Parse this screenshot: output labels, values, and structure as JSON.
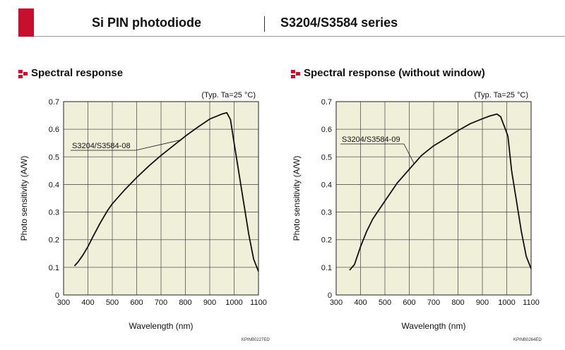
{
  "header": {
    "left_title": "Si PIN photodiode",
    "right_title": "S3204/S3584 series",
    "accent_color": "#c8102e"
  },
  "charts": [
    {
      "section_title": "Spectral response",
      "condition": "(Typ. Ta=25 °C)",
      "figure_code": "KPINB0227ED"
    },
    {
      "section_title": "Spectral response (without window)",
      "condition": "(Typ. Ta=25 °C)",
      "figure_code": "KPINB0264ED"
    }
  ],
  "chart_data": [
    {
      "type": "line",
      "xlabel": "Wavelength (nm)",
      "ylabel": "Photo sensitivity (A/W)",
      "xlim": [
        300,
        1100
      ],
      "ylim": [
        0,
        0.7
      ],
      "xticks": [
        300,
        400,
        500,
        600,
        700,
        800,
        900,
        1000,
        1100
      ],
      "yticks": [
        0,
        0.1,
        0.2,
        0.3,
        0.4,
        0.5,
        0.6,
        0.7
      ],
      "grid": true,
      "series": [
        {
          "name": "S3204/S3584-08",
          "x": [
            345,
            360,
            380,
            400,
            420,
            450,
            480,
            500,
            550,
            600,
            650,
            700,
            750,
            800,
            850,
            900,
            930,
            950,
            970,
            985,
            1000,
            1020,
            1040,
            1060,
            1080,
            1100
          ],
          "y": [
            0.105,
            0.12,
            0.145,
            0.175,
            0.21,
            0.26,
            0.305,
            0.33,
            0.38,
            0.425,
            0.467,
            0.505,
            0.54,
            0.575,
            0.607,
            0.637,
            0.648,
            0.655,
            0.66,
            0.635,
            0.55,
            0.44,
            0.33,
            0.22,
            0.13,
            0.085
          ]
        }
      ]
    },
    {
      "type": "line",
      "xlabel": "Wavelength (nm)",
      "ylabel": "Photo sensitivity (A/W)",
      "xlim": [
        300,
        1100
      ],
      "ylim": [
        0,
        0.7
      ],
      "xticks": [
        300,
        400,
        500,
        600,
        700,
        800,
        900,
        1000,
        1100
      ],
      "yticks": [
        0,
        0.1,
        0.2,
        0.3,
        0.4,
        0.5,
        0.6,
        0.7
      ],
      "grid": true,
      "series": [
        {
          "name": "S3204/S3584-09",
          "x": [
            355,
            375,
            400,
            425,
            450,
            500,
            550,
            600,
            650,
            700,
            750,
            800,
            850,
            900,
            930,
            960,
            975,
            990,
            1005,
            1020,
            1040,
            1060,
            1080,
            1100
          ],
          "y": [
            0.09,
            0.11,
            0.175,
            0.23,
            0.275,
            0.34,
            0.405,
            0.455,
            0.505,
            0.54,
            0.567,
            0.595,
            0.62,
            0.638,
            0.648,
            0.655,
            0.645,
            0.61,
            0.575,
            0.45,
            0.34,
            0.23,
            0.14,
            0.095
          ]
        }
      ]
    }
  ]
}
